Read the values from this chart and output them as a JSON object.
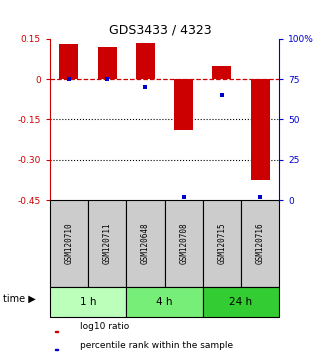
{
  "title": "GDS3433 / 4323",
  "samples": [
    "GSM120710",
    "GSM120711",
    "GSM120648",
    "GSM120708",
    "GSM120715",
    "GSM120716"
  ],
  "log10_ratio": [
    0.13,
    0.12,
    0.135,
    -0.19,
    0.05,
    -0.375
  ],
  "percentile_rank": [
    75,
    75,
    70,
    2,
    65,
    2
  ],
  "bar_color": "#cc0000",
  "dot_color": "#0000cc",
  "ylim_left": [
    -0.45,
    0.15
  ],
  "ylim_right": [
    0,
    100
  ],
  "yticks_left": [
    0.15,
    0,
    -0.15,
    -0.3,
    -0.45
  ],
  "yticks_right": [
    100,
    75,
    50,
    25,
    0
  ],
  "ytick_labels_left": [
    "0.15",
    "0",
    "-0.15",
    "-0.30",
    "-0.45"
  ],
  "ytick_labels_right": [
    "100%",
    "75",
    "50",
    "25",
    "0"
  ],
  "groups": [
    {
      "label": "1 h",
      "indices": [
        0,
        1
      ],
      "color": "#bbffbb"
    },
    {
      "label": "4 h",
      "indices": [
        2,
        3
      ],
      "color": "#77ee77"
    },
    {
      "label": "24 h",
      "indices": [
        4,
        5
      ],
      "color": "#33cc33"
    }
  ],
  "time_label": "time",
  "legend_bar_label": "log10 ratio",
  "legend_dot_label": "percentile rank within the sample",
  "bar_width": 0.5,
  "bg_color": "#ffffff",
  "zero_line_color": "#cc0000",
  "dotted_line_color": "#000000",
  "sample_box_color": "#cccccc"
}
